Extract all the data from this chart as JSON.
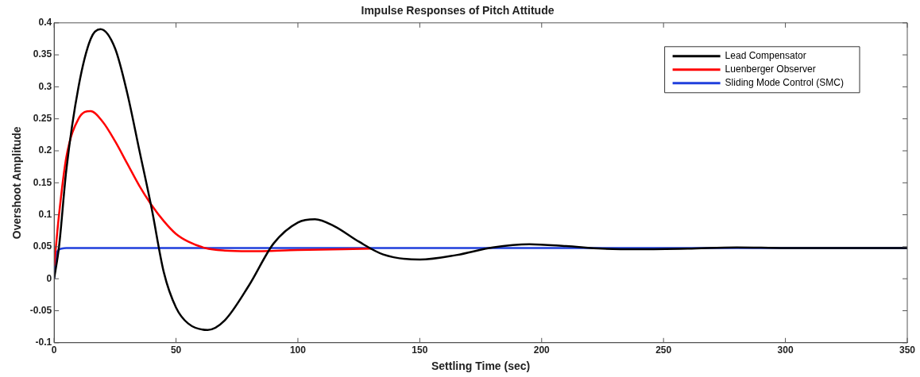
{
  "chart_data": {
    "type": "line",
    "title": "Impulse Responses of Pitch Attitude",
    "xlabel": "Settling Time (sec)",
    "ylabel": "Overshoot Amplitude",
    "xlim": [
      0,
      350
    ],
    "xticks": [
      0,
      50,
      100,
      150,
      200,
      250,
      300,
      350
    ],
    "ylim": [
      -0.1,
      0.4
    ],
    "yticks": [
      -0.1,
      -0.05,
      0,
      0.05,
      0.1,
      0.15,
      0.2,
      0.25,
      0.3,
      0.35,
      0.4
    ],
    "grid": false,
    "legend": "top right",
    "marker": "none",
    "line_style": "solid",
    "series": [
      {
        "name": "Lead Compensator",
        "color": "#000000",
        "x": [
          0,
          2,
          5,
          10,
          15,
          19,
          25,
          30,
          35,
          40,
          45,
          50,
          55,
          63,
          70,
          80,
          90,
          100,
          107,
          115,
          125,
          135,
          150,
          165,
          180,
          195,
          210,
          225,
          240,
          260,
          280,
          300,
          350
        ],
        "values": [
          0,
          0.05,
          0.17,
          0.3,
          0.375,
          0.39,
          0.36,
          0.29,
          0.2,
          0.11,
          0.01,
          -0.045,
          -0.07,
          -0.08,
          -0.065,
          -0.01,
          0.055,
          0.088,
          0.093,
          0.082,
          0.058,
          0.038,
          0.03,
          0.037,
          0.049,
          0.054,
          0.051,
          0.047,
          0.046,
          0.047,
          0.049,
          0.048,
          0.048
        ]
      },
      {
        "name": "Luenberger Observer",
        "color": "#ff0000",
        "x": [
          0,
          2,
          5,
          10,
          15,
          20,
          25,
          30,
          35,
          40,
          45,
          50,
          55,
          62,
          70,
          80,
          100,
          130
        ],
        "values": [
          0.02,
          0.1,
          0.19,
          0.25,
          0.262,
          0.245,
          0.215,
          0.18,
          0.145,
          0.115,
          0.09,
          0.07,
          0.058,
          0.048,
          0.044,
          0.043,
          0.045,
          0.047
        ]
      },
      {
        "name": "Sliding Mode Control (SMC)",
        "color": "#1f3fdc",
        "x": [
          0,
          1,
          3,
          5,
          350
        ],
        "values": [
          0,
          0.04,
          0.047,
          0.048,
          0.048
        ]
      }
    ]
  }
}
